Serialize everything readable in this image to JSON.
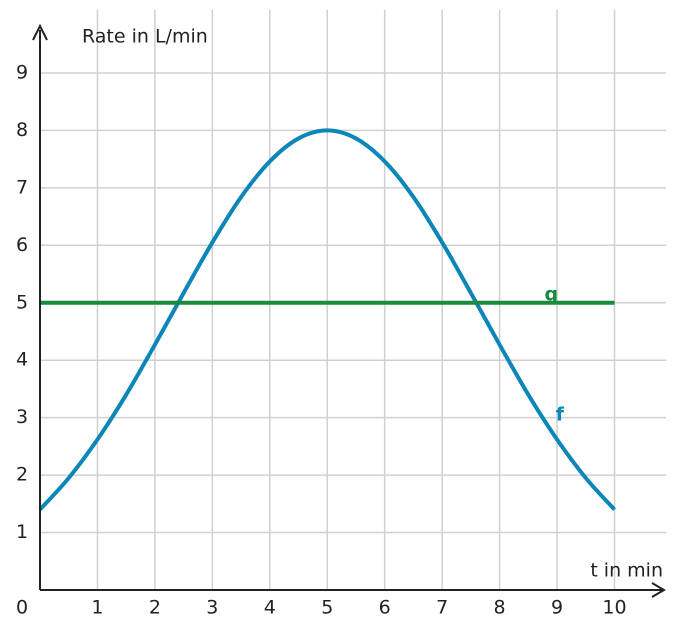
{
  "chart_data": {
    "type": "line",
    "y_label": "Rate in L/min",
    "x_label": "t in min",
    "x": [
      0,
      0.5,
      1,
      1.5,
      2,
      2.5,
      3,
      3.5,
      4,
      4.5,
      5,
      5.5,
      6,
      6.5,
      7,
      7.5,
      8,
      8.5,
      9,
      9.5,
      10
    ],
    "series": [
      {
        "name": "f",
        "color": "#0a86b8",
        "values": [
          1.4,
          1.95,
          2.62,
          3.4,
          4.27,
          5.17,
          6.05,
          6.84,
          7.46,
          7.86,
          8.0,
          7.86,
          7.46,
          6.84,
          6.05,
          5.17,
          4.27,
          3.4,
          2.62,
          1.95,
          1.4
        ]
      },
      {
        "name": "g",
        "color": "#1a8a3c",
        "values": [
          5,
          5,
          5,
          5,
          5,
          5,
          5,
          5,
          5,
          5,
          5,
          5,
          5,
          5,
          5,
          5,
          5,
          5,
          5,
          5,
          5
        ]
      }
    ],
    "xlim": [
      0,
      10.9
    ],
    "ylim": [
      0,
      10.1
    ],
    "xticks": [
      0,
      1,
      2,
      3,
      4,
      5,
      6,
      7,
      8,
      9,
      10
    ],
    "yticks": [
      1,
      2,
      3,
      4,
      5,
      6,
      7,
      8,
      9
    ],
    "grid": true
  }
}
